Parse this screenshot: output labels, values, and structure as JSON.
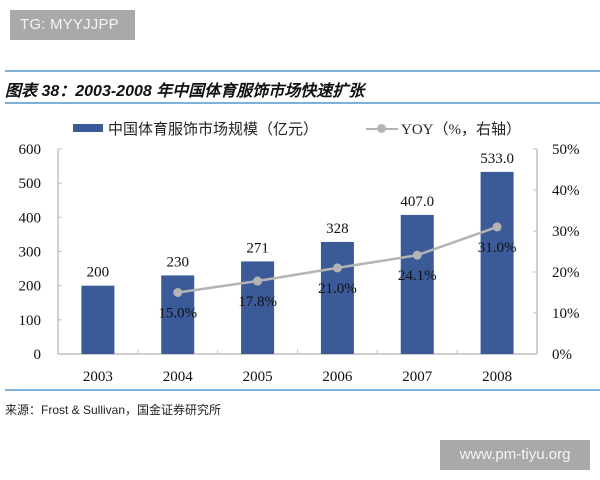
{
  "watermark_top": "TG: MYYJJPP",
  "watermark_bottom": "www.pm-tiyu.org",
  "figure": {
    "title": "图表 38：2003-2008 年中国体育服饰市场快速扩张",
    "source": "来源：Frost & Sullivan，国金证券研究所"
  },
  "colors": {
    "bar": "#3a5a98",
    "line": "#b4b4b4",
    "rule": "#7fb1d8",
    "axis": "#bfbfbf"
  },
  "chart_data": {
    "type": "bar",
    "title": "2003-2008 年中国体育服饰市场快速扩张",
    "categories": [
      "2003",
      "2004",
      "2005",
      "2006",
      "2007",
      "2008"
    ],
    "series": [
      {
        "name": "中国体育服饰市场规模（亿元）",
        "type": "bar",
        "axis": "left",
        "values": [
          200,
          230,
          271,
          328,
          407.0,
          533.0
        ],
        "labels": [
          "200",
          "230",
          "271",
          "328",
          "407.0",
          "533.0"
        ]
      },
      {
        "name": "YOY（%，右轴）",
        "type": "line",
        "axis": "right",
        "values": [
          null,
          15.0,
          17.8,
          21.0,
          24.1,
          31.0
        ],
        "labels": [
          "",
          "15.0%",
          "17.8%",
          "21.0%",
          "24.1%",
          "31.0%"
        ]
      }
    ],
    "xlabel": "",
    "ylabel": "亿元",
    "y2label": "%",
    "ylim": [
      0,
      600
    ],
    "y2lim": [
      0,
      50
    ],
    "yticks": [
      "0",
      "100",
      "200",
      "300",
      "400",
      "500",
      "600"
    ],
    "y2ticks": [
      "0%",
      "10%",
      "20%",
      "30%",
      "40%",
      "50%"
    ],
    "grid": false,
    "legend_position": "top"
  }
}
